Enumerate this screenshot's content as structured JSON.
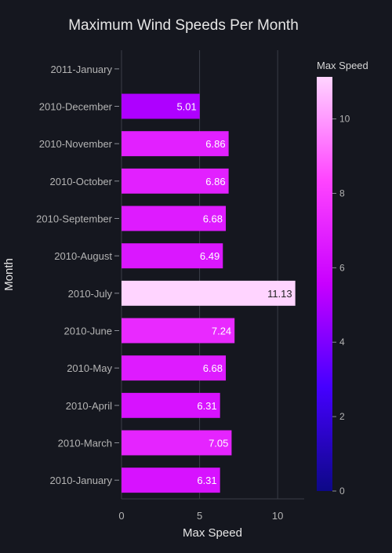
{
  "chart_data": {
    "type": "bar",
    "orientation": "horizontal",
    "title": "Maximum Wind Speeds Per Month",
    "xlabel": "Max Speed",
    "ylabel": "Month",
    "categories": [
      "2010-January",
      "2010-March",
      "2010-April",
      "2010-May",
      "2010-June",
      "2010-July",
      "2010-August",
      "2010-September",
      "2010-October",
      "2010-November",
      "2010-December",
      "2011-January"
    ],
    "values": [
      6.31,
      7.05,
      6.31,
      6.68,
      7.24,
      11.13,
      6.49,
      6.68,
      6.86,
      6.86,
      5.01,
      null
    ],
    "value_labels": [
      "6.31",
      "7.05",
      "6.31",
      "6.68",
      "7.24",
      "11.13",
      "6.49",
      "6.68",
      "6.86",
      "6.86",
      "5.01",
      ""
    ],
    "xlim": [
      0,
      11.7
    ],
    "xticks": [
      "0",
      "5",
      "10"
    ],
    "grid": true,
    "colorbar": {
      "title": "Max Speed",
      "range": [
        0,
        11.13
      ],
      "ticks": [
        "0",
        "2",
        "4",
        "6",
        "8",
        "10"
      ],
      "colors": [
        "#0d0887",
        "#4500ff",
        "#c800ff",
        "#ff44ff",
        "#ffd4ff"
      ]
    },
    "colors": {
      "background": "#15171f",
      "grid": "#3a3d47",
      "text": "#d6d6d6",
      "tick_text": "#b4b4b4"
    }
  }
}
